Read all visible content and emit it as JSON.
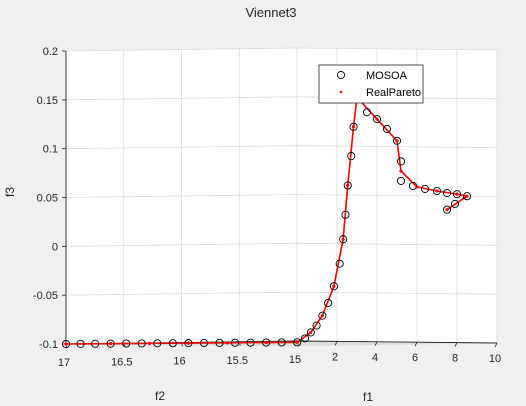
{
  "chart_data": {
    "type": "scatter",
    "title": "Viennet3",
    "xlabel": "f1",
    "ylabel": "f2",
    "zlabel": "f3",
    "xlim": [
      0,
      10
    ],
    "ylim": [
      15,
      17
    ],
    "zlim": [
      -0.1,
      0.2
    ],
    "x_ticks": [
      "2",
      "4",
      "6",
      "8",
      "10"
    ],
    "y_ticks": [
      "15",
      "15.5",
      "16",
      "16.5",
      "17"
    ],
    "z_ticks": [
      "-0.1",
      "-0.05",
      "0",
      "0.05",
      "0.1",
      "0.15",
      "0.2"
    ],
    "grid": true,
    "legend_position": "top-right",
    "colors": {
      "mosoa": "#000000",
      "realpareto": "#ff0000"
    },
    "series": [
      {
        "name": "MOSOA",
        "marker": "open-circle",
        "points": [
          [
            0.0,
            17.0,
            -0.1
          ],
          [
            0.15,
            16.9,
            -0.1
          ],
          [
            0.3,
            16.8,
            -0.1
          ],
          [
            0.5,
            16.7,
            -0.1
          ],
          [
            0.7,
            16.6,
            -0.1
          ],
          [
            0.9,
            16.5,
            -0.1
          ],
          [
            1.1,
            16.4,
            -0.1
          ],
          [
            1.3,
            16.3,
            -0.1
          ],
          [
            1.5,
            16.2,
            -0.1
          ],
          [
            1.7,
            16.1,
            -0.1
          ],
          [
            1.9,
            16.0,
            -0.1
          ],
          [
            2.1,
            15.9,
            -0.1
          ],
          [
            2.3,
            15.8,
            -0.1
          ],
          [
            2.5,
            15.7,
            -0.1
          ],
          [
            2.7,
            15.6,
            -0.1
          ],
          [
            2.9,
            15.5,
            -0.1
          ],
          [
            3.0,
            15.45,
            -0.096
          ],
          [
            3.0,
            15.4,
            -0.09
          ],
          [
            3.0,
            15.35,
            -0.083
          ],
          [
            3.0,
            15.3,
            -0.073
          ],
          [
            3.0,
            15.25,
            -0.06
          ],
          [
            3.0,
            15.2,
            -0.043
          ],
          [
            3.0,
            15.15,
            -0.02
          ],
          [
            3.0,
            15.12,
            0.005
          ],
          [
            3.0,
            15.1,
            0.03
          ],
          [
            3.0,
            15.08,
            0.06
          ],
          [
            3.0,
            15.05,
            0.09
          ],
          [
            3.0,
            15.03,
            0.12
          ],
          [
            3.0,
            15.0,
            0.15
          ],
          [
            3.5,
            15.0,
            0.135
          ],
          [
            4.0,
            15.0,
            0.128
          ],
          [
            4.5,
            15.0,
            0.118
          ],
          [
            5.0,
            15.0,
            0.106
          ],
          [
            5.2,
            15.0,
            0.085
          ],
          [
            5.2,
            15.0,
            0.065
          ],
          [
            5.8,
            15.0,
            0.06
          ],
          [
            6.4,
            15.0,
            0.057
          ],
          [
            7.0,
            15.0,
            0.055
          ],
          [
            7.5,
            15.0,
            0.053
          ],
          [
            8.0,
            15.0,
            0.052
          ],
          [
            8.5,
            15.0,
            0.05
          ],
          [
            7.9,
            15.0,
            0.042
          ],
          [
            7.5,
            15.0,
            0.036
          ]
        ]
      },
      {
        "name": "RealPareto",
        "marker": "dot",
        "points": [
          [
            0.0,
            17.0,
            -0.1
          ],
          [
            0.5,
            16.7,
            -0.1
          ],
          [
            1.0,
            16.45,
            -0.1
          ],
          [
            1.5,
            16.2,
            -0.1
          ],
          [
            2.0,
            15.95,
            -0.1
          ],
          [
            2.5,
            15.7,
            -0.1
          ],
          [
            2.9,
            15.5,
            -0.1
          ],
          [
            3.0,
            15.4,
            -0.09
          ],
          [
            3.0,
            15.3,
            -0.073
          ],
          [
            3.0,
            15.2,
            -0.043
          ],
          [
            3.0,
            15.12,
            0.005
          ],
          [
            3.0,
            15.08,
            0.06
          ],
          [
            3.0,
            15.03,
            0.12
          ],
          [
            3.0,
            15.0,
            0.15
          ],
          [
            4.0,
            15.0,
            0.128
          ],
          [
            5.0,
            15.0,
            0.106
          ],
          [
            5.2,
            15.0,
            0.075
          ],
          [
            6.0,
            15.0,
            0.059
          ],
          [
            7.0,
            15.0,
            0.055
          ],
          [
            8.0,
            15.0,
            0.052
          ],
          [
            8.5,
            15.0,
            0.05
          ],
          [
            7.5,
            15.0,
            0.036
          ]
        ]
      }
    ]
  }
}
